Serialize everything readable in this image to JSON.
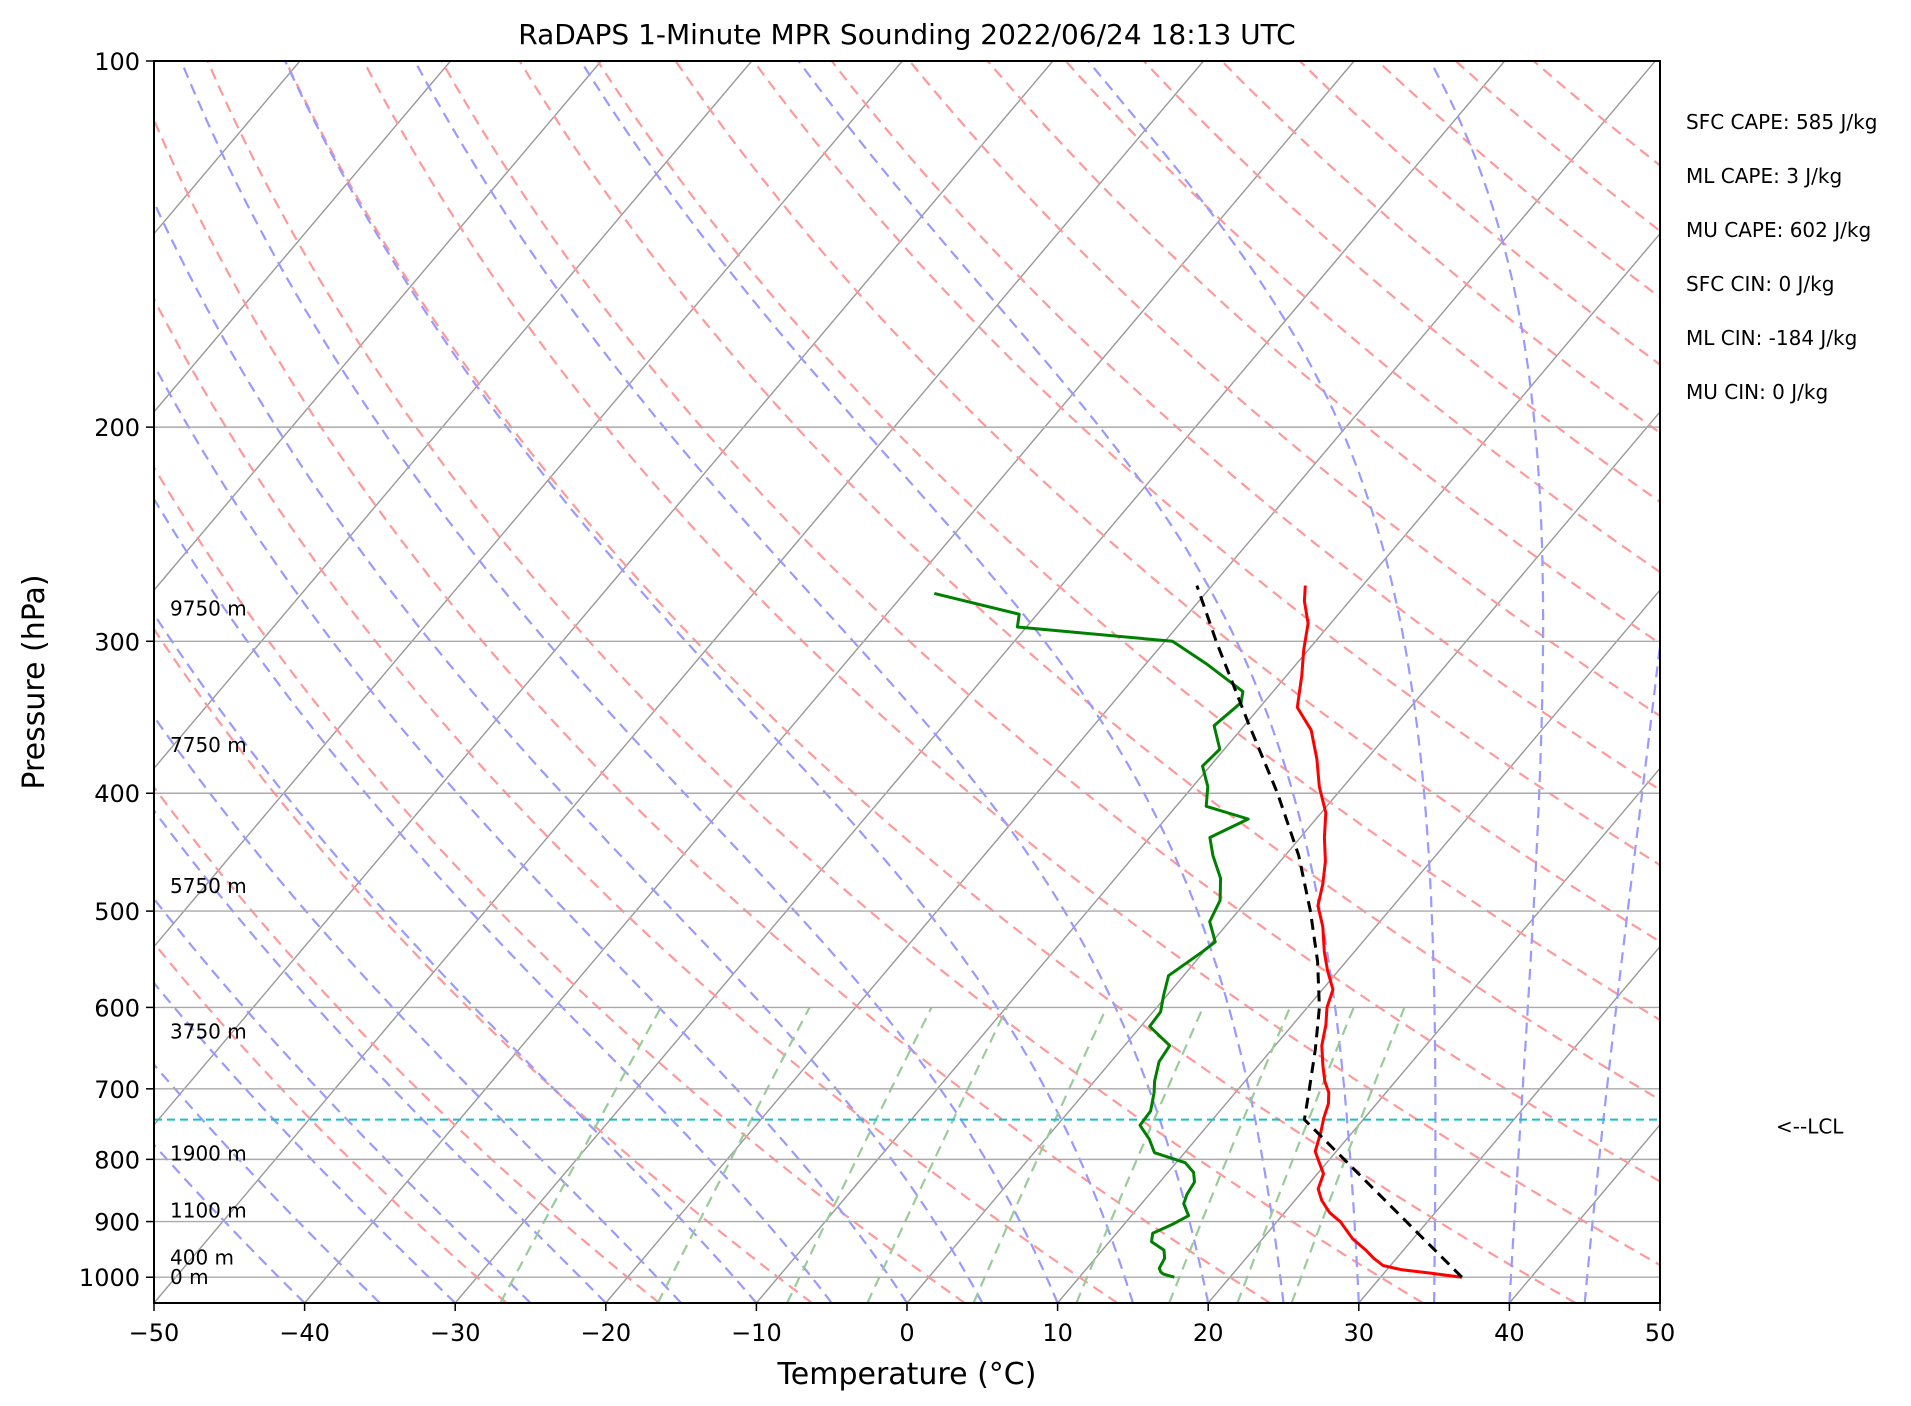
{
  "chart_data": {
    "type": "line",
    "title": "RaDAPS 1-Minute MPR Sounding 2022/06/24 18:13 UTC",
    "xlabel": "Temperature (°C)",
    "ylabel": "Pressure (hPa)",
    "xlim": [
      -50,
      50
    ],
    "ylim": [
      1050,
      100
    ],
    "y_scale": "log",
    "skew": "skew-T log-p",
    "x_ticks": [
      "−50",
      "−40",
      "−30",
      "−20",
      "−10",
      "0",
      "10",
      "20",
      "30",
      "40",
      "50"
    ],
    "y_ticks": [
      {
        "p": 100,
        "label": "100"
      },
      {
        "p": 200,
        "label": "200"
      },
      {
        "p": 300,
        "label": "300"
      },
      {
        "p": 400,
        "label": "400"
      },
      {
        "p": 500,
        "label": "500"
      },
      {
        "p": 600,
        "label": "600"
      },
      {
        "p": 700,
        "label": "700"
      },
      {
        "p": 800,
        "label": "800"
      },
      {
        "p": 900,
        "label": "900"
      },
      {
        "p": 1000,
        "label": "1000"
      }
    ],
    "height_labels": [
      {
        "p": 282,
        "label": "9750 m"
      },
      {
        "p": 365,
        "label": "7750 m"
      },
      {
        "p": 477,
        "label": "5750 m"
      },
      {
        "p": 628,
        "label": "3750 m"
      },
      {
        "p": 791,
        "label": "1900 m"
      },
      {
        "p": 881,
        "label": "1100 m"
      },
      {
        "p": 963,
        "label": "400 m"
      },
      {
        "p": 1000,
        "label": "0 m"
      }
    ],
    "indices": [
      "SFC CAPE: 585 J/kg",
      "ML CAPE: 3 J/kg",
      "MU CAPE: 602 J/kg",
      "SFC CIN: 0 J/kg",
      "ML CIN: -184 J/kg",
      "MU CIN: 0 J/kg"
    ],
    "lcl": {
      "p": 742,
      "label": "<--LCL"
    },
    "colors": {
      "temperature": "#ff0000",
      "dewpoint": "#008000",
      "parcel": "#000000",
      "lcl": "#17becf",
      "dry_adiabat": "#ff9999",
      "moist_adiabat": "#9999ff",
      "mixing_ratio": "#99cc99",
      "isotherm": "#999999"
    },
    "series": [
      {
        "key": "temperature",
        "points": [
          [
            1000,
            35.4
          ],
          [
            992,
            33.0
          ],
          [
            986,
            31.0
          ],
          [
            978,
            29.5
          ],
          [
            965,
            28.5
          ],
          [
            950,
            27.5
          ],
          [
            930,
            26.0
          ],
          [
            900,
            24.2
          ],
          [
            885,
            23.0
          ],
          [
            865,
            21.8
          ],
          [
            846,
            20.9
          ],
          [
            822,
            20.4
          ],
          [
            805,
            19.5
          ],
          [
            788,
            18.6
          ],
          [
            760,
            17.9
          ],
          [
            740,
            17.3
          ],
          [
            720,
            16.8
          ],
          [
            705,
            16.2
          ],
          [
            690,
            15.3
          ],
          [
            670,
            14.3
          ],
          [
            645,
            13.1
          ],
          [
            620,
            12.2
          ],
          [
            600,
            11.3
          ],
          [
            580,
            10.7
          ],
          [
            560,
            9.3
          ],
          [
            540,
            8.0
          ],
          [
            515,
            6.5
          ],
          [
            495,
            5.0
          ],
          [
            475,
            4.1
          ],
          [
            455,
            3.0
          ],
          [
            435,
            1.6
          ],
          [
            415,
            0.3
          ],
          [
            395,
            -1.6
          ],
          [
            375,
            -3.3
          ],
          [
            355,
            -5.3
          ],
          [
            340,
            -7.5
          ],
          [
            320,
            -9.0
          ],
          [
            305,
            -10.3
          ],
          [
            290,
            -11.5
          ],
          [
            278,
            -13.0
          ],
          [
            270,
            -13.8
          ]
        ]
      },
      {
        "key": "dewpoint",
        "points": [
          [
            1000,
            16.3
          ],
          [
            994,
            15.4
          ],
          [
            990,
            15.1
          ],
          [
            983,
            14.8
          ],
          [
            965,
            14.6
          ],
          [
            950,
            14.1
          ],
          [
            935,
            12.8
          ],
          [
            920,
            12.4
          ],
          [
            905,
            13.2
          ],
          [
            890,
            13.8
          ],
          [
            870,
            12.8
          ],
          [
            855,
            12.5
          ],
          [
            835,
            12.3
          ],
          [
            820,
            11.7
          ],
          [
            805,
            10.6
          ],
          [
            790,
            8.0
          ],
          [
            770,
            6.9
          ],
          [
            750,
            5.5
          ],
          [
            730,
            5.4
          ],
          [
            705,
            4.6
          ],
          [
            690,
            4.0
          ],
          [
            665,
            3.2
          ],
          [
            645,
            3.0
          ],
          [
            622,
            0.6
          ],
          [
            605,
            0.5
          ],
          [
            587,
            -0.2
          ],
          [
            565,
            -1.0
          ],
          [
            540,
            -0.1
          ],
          [
            530,
            0.2
          ],
          [
            510,
            -1.3
          ],
          [
            490,
            -1.8
          ],
          [
            470,
            -3.0
          ],
          [
            450,
            -4.8
          ],
          [
            435,
            -6.0
          ],
          [
            420,
            -4.5
          ],
          [
            410,
            -8.0
          ],
          [
            395,
            -9.0
          ],
          [
            380,
            -10.5
          ],
          [
            368,
            -10.3
          ],
          [
            352,
            -12.0
          ],
          [
            337,
            -11.5
          ],
          [
            330,
            -12.0
          ],
          [
            313,
            -16.0
          ],
          [
            300,
            -19.5
          ],
          [
            292,
            -30.6
          ],
          [
            285,
            -31.2
          ],
          [
            274,
            -38.0
          ]
        ]
      },
      {
        "key": "parcel",
        "points": [
          [
            1000,
            35.4
          ],
          [
            742,
            16.1
          ],
          [
            700,
            14.7
          ],
          [
            650,
            12.9
          ],
          [
            600,
            10.8
          ],
          [
            550,
            8.1
          ],
          [
            500,
            4.8
          ],
          [
            450,
            0.9
          ],
          [
            400,
            -4.0
          ],
          [
            350,
            -9.9
          ],
          [
            300,
            -16.6
          ],
          [
            270,
            -21.0
          ]
        ]
      }
    ]
  }
}
